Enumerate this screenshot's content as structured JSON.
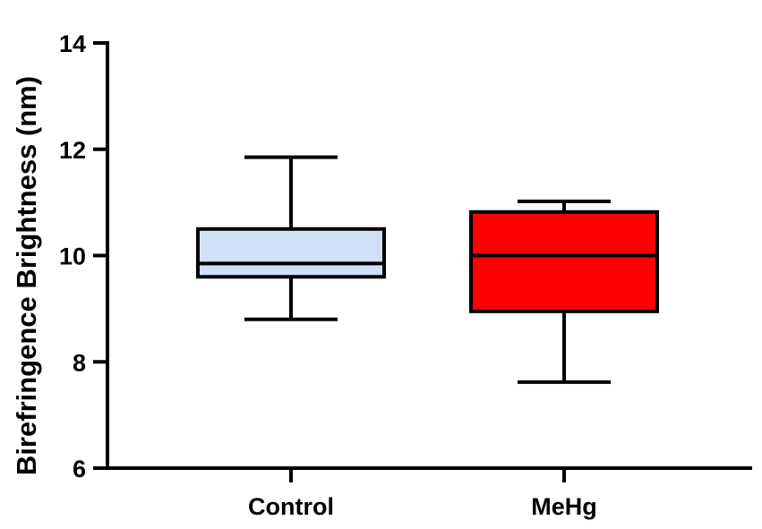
{
  "chart_data": {
    "type": "box",
    "title": "",
    "xlabel": "",
    "ylabel": "Birefringence Brightness (nm)",
    "ylim": [
      6,
      14
    ],
    "yticks": [
      6,
      8,
      10,
      12,
      14
    ],
    "ytick_labels": [
      "6",
      "8",
      "10",
      "12",
      "14"
    ],
    "categories": [
      "Control",
      "MeHg"
    ],
    "series": [
      {
        "category": "Control",
        "whisker_low": 8.8,
        "q1": 9.6,
        "median": 9.85,
        "q3": 10.5,
        "whisker_high": 11.85,
        "fill": "#cfe0f7"
      },
      {
        "category": "MeHg",
        "whisker_low": 7.62,
        "q1": 8.95,
        "median": 10.0,
        "q3": 10.82,
        "whisker_high": 11.02,
        "fill": "#ff0000"
      }
    ],
    "grid": false,
    "legend": "none"
  }
}
